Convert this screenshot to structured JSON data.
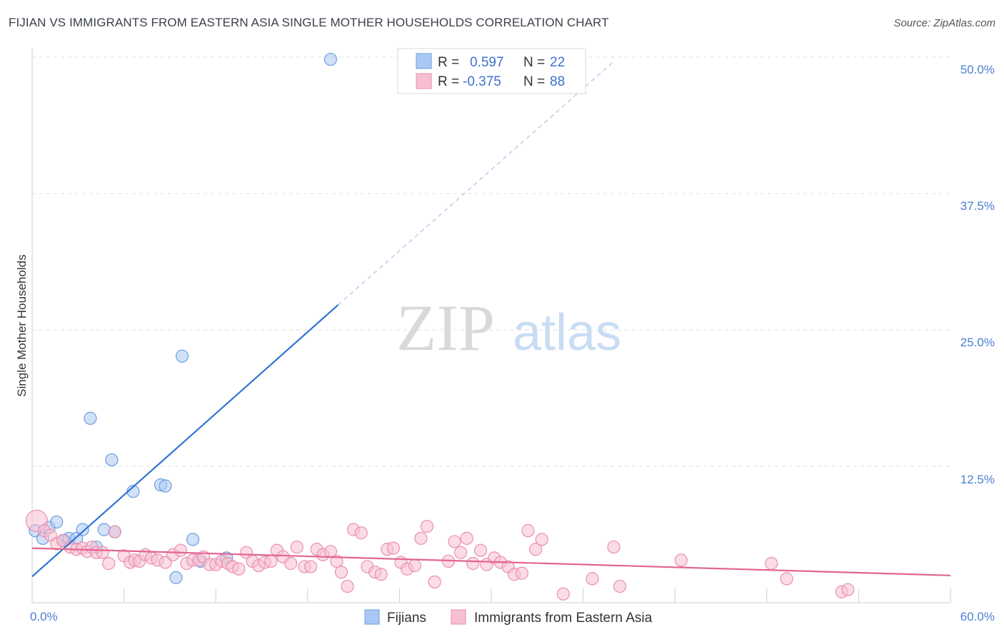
{
  "title": "FIJIAN VS IMMIGRANTS FROM EASTERN ASIA SINGLE MOTHER HOUSEHOLDS CORRELATION CHART",
  "source": "Source: ZipAtlas.com",
  "watermark": {
    "zip": "ZIP",
    "atlas": "atlas"
  },
  "legend": {
    "r_label": "R =",
    "n_label": "N =",
    "rows": [
      {
        "r": "0.597",
        "n": "22",
        "color": "#a9c8f3",
        "stroke": "#6f9de0"
      },
      {
        "r": "-0.375",
        "n": "88",
        "color": "#f7bfd2",
        "stroke": "#e98fae"
      }
    ]
  },
  "bottom_legend": [
    {
      "label": "Fijians",
      "color": "#a9c8f3",
      "stroke": "#6f9de0"
    },
    {
      "label": "Immigrants from Eastern Asia",
      "color": "#f7bfd2",
      "stroke": "#e98fae"
    }
  ],
  "chart_data": {
    "type": "scatter",
    "title": "FIJIAN VS IMMIGRANTS FROM EASTERN ASIA SINGLE MOTHER HOUSEHOLDS CORRELATION CHART",
    "xlabel": "",
    "ylabel": "Single Mother Households",
    "xlim": [
      0,
      60
    ],
    "ylim": [
      0,
      52
    ],
    "x_tick_labels": [
      "0.0%",
      "60.0%"
    ],
    "y_ticks": [
      12.5,
      25.0,
      37.5,
      50.0
    ],
    "y_tick_labels": [
      "12.5%",
      "25.0%",
      "37.5%",
      "50.0%"
    ],
    "grid": true,
    "series": [
      {
        "name": "Fijians",
        "color": "#a9c8f3",
        "stroke": "#6f9de0",
        "line_color": "#2f73d6",
        "trend": {
          "x0": 0,
          "y0": 2.4,
          "x1": 20,
          "y1": 27.3,
          "dash_to_x": 38,
          "dash_to_y": 49.6
        },
        "points": [
          [
            0.2,
            6.6
          ],
          [
            0.7,
            5.9
          ],
          [
            1.1,
            6.9
          ],
          [
            1.6,
            7.4
          ],
          [
            2.1,
            5.7
          ],
          [
            2.4,
            5.9
          ],
          [
            2.9,
            5.9
          ],
          [
            3.3,
            6.7
          ],
          [
            3.8,
            16.9
          ],
          [
            4.2,
            5.1
          ],
          [
            4.7,
            6.7
          ],
          [
            5.2,
            13.1
          ],
          [
            5.4,
            6.5
          ],
          [
            6.6,
            10.2
          ],
          [
            8.4,
            10.8
          ],
          [
            8.7,
            10.7
          ],
          [
            9.4,
            2.3
          ],
          [
            9.8,
            22.6
          ],
          [
            10.5,
            5.8
          ],
          [
            11.0,
            3.8
          ],
          [
            12.7,
            4.1
          ],
          [
            19.5,
            49.8
          ]
        ]
      },
      {
        "name": "Immigrants from Eastern Asia",
        "color": "#f7bfd2",
        "stroke": "#e98fae",
        "line_color": "#e2658f",
        "trend": {
          "x0": 0,
          "y0": 5.0,
          "x1": 60,
          "y1": 2.5
        },
        "points": [
          [
            0.3,
            7.5
          ],
          [
            0.8,
            6.6
          ],
          [
            1.2,
            6.2
          ],
          [
            1.6,
            5.4
          ],
          [
            2.0,
            5.7
          ],
          [
            2.5,
            5.1
          ],
          [
            2.9,
            4.9
          ],
          [
            3.3,
            5.0
          ],
          [
            3.6,
            4.7
          ],
          [
            3.9,
            5.1
          ],
          [
            4.2,
            4.6
          ],
          [
            4.6,
            4.6
          ],
          [
            5.0,
            3.6
          ],
          [
            5.4,
            6.5
          ],
          [
            6.0,
            4.3
          ],
          [
            6.4,
            3.7
          ],
          [
            6.7,
            3.9
          ],
          [
            7.0,
            3.8
          ],
          [
            7.4,
            4.4
          ],
          [
            7.8,
            4.1
          ],
          [
            8.2,
            3.9
          ],
          [
            8.7,
            3.7
          ],
          [
            9.2,
            4.4
          ],
          [
            9.7,
            4.8
          ],
          [
            10.1,
            3.6
          ],
          [
            10.5,
            3.9
          ],
          [
            10.9,
            3.9
          ],
          [
            11.2,
            4.2
          ],
          [
            11.6,
            3.5
          ],
          [
            12.0,
            3.5
          ],
          [
            12.4,
            3.8
          ],
          [
            12.8,
            3.6
          ],
          [
            13.1,
            3.3
          ],
          [
            13.5,
            3.1
          ],
          [
            14.0,
            4.6
          ],
          [
            14.4,
            3.8
          ],
          [
            14.8,
            3.4
          ],
          [
            15.2,
            3.7
          ],
          [
            15.6,
            3.8
          ],
          [
            16.0,
            4.8
          ],
          [
            16.4,
            4.2
          ],
          [
            16.9,
            3.6
          ],
          [
            17.3,
            5.1
          ],
          [
            17.8,
            3.3
          ],
          [
            18.2,
            3.3
          ],
          [
            18.6,
            4.9
          ],
          [
            19.0,
            4.4
          ],
          [
            19.5,
            4.7
          ],
          [
            19.9,
            3.8
          ],
          [
            20.2,
            2.8
          ],
          [
            20.6,
            1.5
          ],
          [
            21.0,
            6.7
          ],
          [
            21.5,
            6.4
          ],
          [
            21.9,
            3.3
          ],
          [
            22.4,
            2.8
          ],
          [
            22.8,
            2.6
          ],
          [
            23.2,
            4.9
          ],
          [
            23.6,
            5.0
          ],
          [
            24.1,
            3.7
          ],
          [
            24.5,
            3.1
          ],
          [
            25.0,
            3.4
          ],
          [
            25.4,
            5.9
          ],
          [
            25.8,
            7.0
          ],
          [
            26.3,
            1.9
          ],
          [
            27.2,
            3.8
          ],
          [
            27.6,
            5.6
          ],
          [
            28.0,
            4.6
          ],
          [
            28.4,
            5.9
          ],
          [
            28.8,
            3.6
          ],
          [
            29.3,
            4.8
          ],
          [
            29.7,
            3.5
          ],
          [
            30.2,
            4.1
          ],
          [
            30.6,
            3.7
          ],
          [
            31.1,
            3.3
          ],
          [
            31.5,
            2.6
          ],
          [
            32.0,
            2.7
          ],
          [
            32.4,
            6.6
          ],
          [
            32.9,
            4.9
          ],
          [
            33.3,
            5.8
          ],
          [
            34.7,
            0.8
          ],
          [
            36.6,
            2.2
          ],
          [
            38.0,
            5.1
          ],
          [
            38.4,
            1.5
          ],
          [
            42.4,
            3.9
          ],
          [
            48.3,
            3.6
          ],
          [
            49.3,
            2.2
          ],
          [
            52.9,
            1.0
          ],
          [
            53.3,
            1.2
          ]
        ]
      }
    ]
  }
}
